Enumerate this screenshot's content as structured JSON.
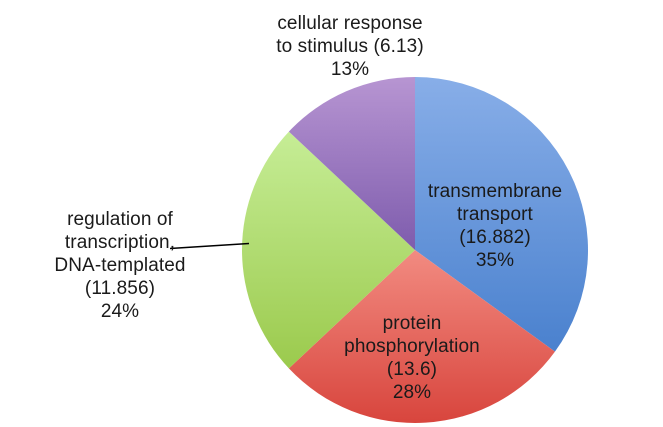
{
  "chart_data": {
    "type": "pie",
    "title": "",
    "legend": "none",
    "start_angle_deg": 0,
    "direction": "clockwise",
    "background_color": "#ffffff",
    "text_color": "#1a1a1a",
    "slices": [
      {
        "id": "transmembrane-transport",
        "label": "transmembrane transport",
        "value": 16.882,
        "percent": 35,
        "percent_label": "35%",
        "color_top": "#88AEE8",
        "color_bottom": "#4A81CE",
        "label_placement": "inside",
        "lines": [
          "transmembrane",
          "transport",
          "(16.882)",
          "35%"
        ]
      },
      {
        "id": "protein-phosphorylation",
        "label": "protein phosphorylation",
        "value": 13.6,
        "percent": 28,
        "percent_label": "28%",
        "color_top": "#F28B81",
        "color_bottom": "#D8453D",
        "label_placement": "inside",
        "lines": [
          "protein",
          "phosphorylation",
          "(13.6)",
          "28%"
        ]
      },
      {
        "id": "regulation-of-transcription-dna-templated",
        "label": "regulation of transcription, DNA-templated",
        "value": 11.856,
        "percent": 24,
        "percent_label": "24%",
        "color_top": "#C6ED96",
        "color_bottom": "#9BCA4D",
        "label_placement": "outside-left-with-leader-line",
        "lines": [
          "regulation of",
          "transcription,",
          "DNA-templated",
          "(11.856)",
          "24%"
        ]
      },
      {
        "id": "cellular-response-to-stimulus",
        "label": "cellular response to stimulus",
        "value": 6.13,
        "percent": 13,
        "percent_label": "13%",
        "color_top": "#B795D2",
        "color_bottom": "#7E5CAD",
        "label_placement": "outside-top",
        "lines": [
          "cellular response",
          "to stimulus (6.13)",
          "13%"
        ]
      }
    ]
  }
}
